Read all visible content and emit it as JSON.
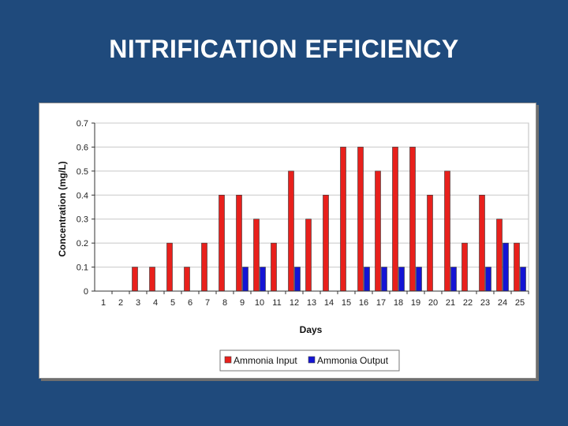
{
  "slide": {
    "title": "NITRIFICATION EFFICIENCY"
  },
  "chart_data": {
    "type": "bar",
    "xlabel": "Days",
    "ylabel": "Concentration (mg/L)",
    "ylim": [
      0,
      0.7
    ],
    "yticks": [
      "0",
      "0.1",
      "0.2",
      "0.3",
      "0.4",
      "0.5",
      "0.6",
      "0.7"
    ],
    "grid": true,
    "legend_position": "bottom",
    "categories": [
      "1",
      "2",
      "3",
      "4",
      "5",
      "6",
      "7",
      "8",
      "9",
      "10",
      "11",
      "12",
      "13",
      "14",
      "15",
      "16",
      "17",
      "18",
      "19",
      "20",
      "21",
      "22",
      "23",
      "24",
      "25"
    ],
    "series": [
      {
        "name": "Ammonia Input",
        "color": "#e8201c",
        "values": [
          0,
          0,
          0.1,
          0.1,
          0.2,
          0.1,
          0.2,
          0.4,
          0.4,
          0.3,
          0.2,
          0.5,
          0.3,
          0.4,
          0.6,
          0.6,
          0.5,
          0.6,
          0.6,
          0.4,
          0.5,
          0.2,
          0.4,
          0.3,
          0.2
        ]
      },
      {
        "name": "Ammonia Output",
        "color": "#1414d4",
        "values": [
          0,
          0,
          0,
          0,
          0,
          0,
          0,
          0,
          0.1,
          0.1,
          0,
          0.1,
          0,
          0,
          0,
          0.1,
          0.1,
          0.1,
          0.1,
          0,
          0.1,
          0,
          0.1,
          0.2,
          0.1
        ]
      }
    ]
  }
}
